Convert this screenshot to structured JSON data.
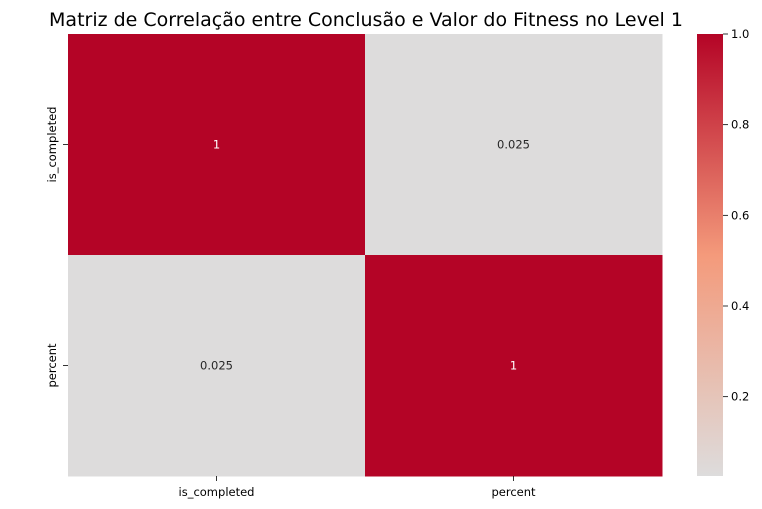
{
  "chart_data": {
    "type": "heatmap",
    "title": "Matriz de Correlação entre Conclusão e Valor do Fitness no Level 1",
    "x_categories": [
      "is_completed",
      "percent"
    ],
    "y_categories": [
      "is_completed",
      "percent"
    ],
    "values": [
      [
        1,
        0.025
      ],
      [
        0.025,
        1
      ]
    ],
    "annotations": [
      [
        "1",
        "0.025"
      ],
      [
        "0.025",
        "1"
      ]
    ],
    "colormap": "coolwarm",
    "colorbar": {
      "range": [
        0.025,
        1.0
      ],
      "ticks": [
        0.2,
        0.4,
        0.6,
        0.8,
        1.0
      ],
      "tick_labels": [
        "0.2",
        "0.4",
        "0.6",
        "0.8",
        "1.0"
      ]
    },
    "colors": {
      "high": "#b40426",
      "low": "#dddcdc"
    }
  }
}
